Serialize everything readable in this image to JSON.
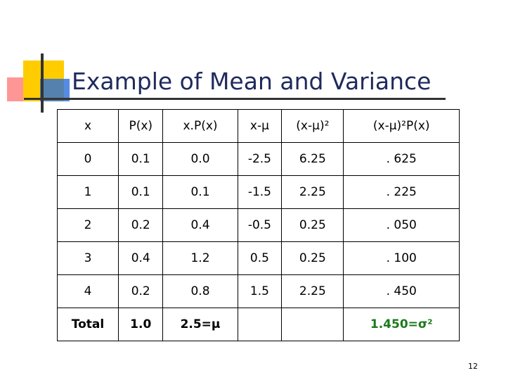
{
  "slide": {
    "title": "Example of Mean and Variance",
    "page_number": "12"
  },
  "table": {
    "headers": [
      "x",
      "P(x)",
      "x.P(x)",
      "x-μ",
      "(x-μ)²",
      "(x-μ)²P(x)"
    ],
    "rows": [
      [
        "0",
        "0.1",
        "0.0",
        "-2.5",
        "6.25",
        ". 625"
      ],
      [
        "1",
        "0.1",
        "0.1",
        "-1.5",
        "2.25",
        ". 225"
      ],
      [
        "2",
        "0.2",
        "0.4",
        "-0.5",
        "0.25",
        ". 050"
      ],
      [
        "3",
        "0.4",
        "1.2",
        "0.5",
        "0.25",
        ". 100"
      ],
      [
        "4",
        "0.2",
        "0.8",
        "1.5",
        "2.25",
        ". 450"
      ]
    ],
    "total_row": [
      "Total",
      "1.0",
      "2.5=μ",
      "",
      "",
      "1.450=σ²"
    ]
  },
  "colors": {
    "title": "#1f2a5c",
    "highlight": "#1a7a1a"
  }
}
